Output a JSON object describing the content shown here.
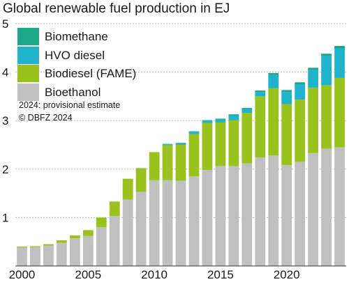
{
  "chart_data": {
    "type": "bar",
    "stacked": true,
    "title": "Global renewable fuel production in EJ",
    "xlabel": "",
    "ylabel": "",
    "ylim": [
      0,
      5
    ],
    "yticks": [
      1,
      2,
      3,
      4,
      5
    ],
    "xtick_labels": [
      "2000",
      "2005",
      "2010",
      "2015",
      "2020"
    ],
    "grid": true,
    "legend_position": "top-left",
    "categories": [
      "2000",
      "2001",
      "2002",
      "2003",
      "2004",
      "2005",
      "2006",
      "2007",
      "2008",
      "2009",
      "2010",
      "2011",
      "2012",
      "2013",
      "2014",
      "2015",
      "2016",
      "2017",
      "2018",
      "2019",
      "2020",
      "2021",
      "2022",
      "2023",
      "2024"
    ],
    "series": [
      {
        "name": "Bioethanol",
        "color": "#c0c0c0",
        "values": [
          0.38,
          0.39,
          0.42,
          0.48,
          0.57,
          0.62,
          0.8,
          1.03,
          1.37,
          1.53,
          1.77,
          1.77,
          1.76,
          1.85,
          1.98,
          2.06,
          2.06,
          2.12,
          2.24,
          2.28,
          2.08,
          2.15,
          2.33,
          2.42,
          2.45
        ]
      },
      {
        "name": "Biodiesel (FAME)",
        "color": "#99c31c",
        "values": [
          0.02,
          0.02,
          0.03,
          0.05,
          0.06,
          0.12,
          0.2,
          0.3,
          0.43,
          0.49,
          0.58,
          0.72,
          0.74,
          0.87,
          0.97,
          0.9,
          0.95,
          1.04,
          1.26,
          1.39,
          1.26,
          1.28,
          1.35,
          1.31,
          1.43
        ]
      },
      {
        "name": "HVO diesel",
        "color": "#1fb4cc",
        "values": [
          0,
          0,
          0,
          0,
          0,
          0,
          0,
          0,
          0,
          0,
          0,
          0.02,
          0.03,
          0.05,
          0.05,
          0.06,
          0.1,
          0.08,
          0.09,
          0.27,
          0.25,
          0.32,
          0.37,
          0.6,
          0.61
        ]
      },
      {
        "name": "Biomethane",
        "color": "#1aa887",
        "values": [
          0,
          0,
          0,
          0,
          0,
          0,
          0,
          0,
          0,
          0,
          0,
          0.01,
          0.01,
          0.01,
          0.01,
          0.02,
          0.02,
          0.02,
          0.03,
          0.04,
          0.04,
          0.04,
          0.04,
          0.05,
          0.05
        ]
      }
    ],
    "annotations": [
      "2024: provisional estimate",
      "© DBFZ 2024"
    ]
  }
}
